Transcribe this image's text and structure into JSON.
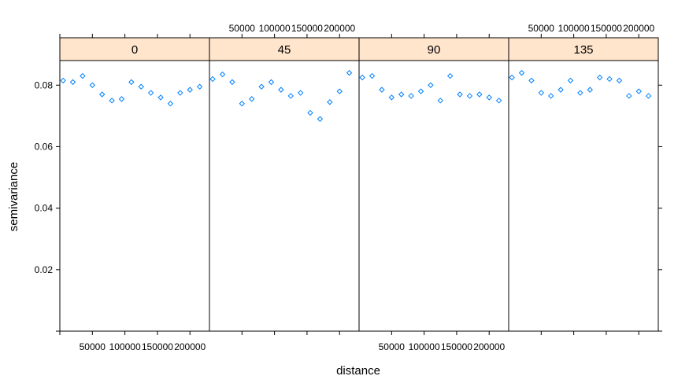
{
  "chart_data": {
    "type": "scatter",
    "xlabel": "distance",
    "ylabel": "semivariance",
    "xlim": [
      0,
      230000
    ],
    "ylim": [
      0,
      0.088
    ],
    "y_ticks": [
      0.02,
      0.04,
      0.06,
      0.08
    ],
    "y_tick_labels": [
      "0.02",
      "0.04",
      "0.06",
      "0.08"
    ],
    "x_ticks": [
      50000,
      100000,
      150000,
      200000
    ],
    "x_tick_labels": [
      "50000",
      "100000",
      "150000",
      "200000"
    ],
    "strip_color": "#ffe5cc",
    "point_color": "#0080ff",
    "panels": [
      {
        "label": "0",
        "x": [
          5000,
          20000,
          35000,
          50000,
          65000,
          80000,
          95000,
          110000,
          125000,
          140000,
          155000,
          170000,
          185000,
          200000,
          215000
        ],
        "y": [
          0.0815,
          0.081,
          0.083,
          0.08,
          0.077,
          0.075,
          0.0755,
          0.081,
          0.0795,
          0.0775,
          0.076,
          0.074,
          0.0775,
          0.0785,
          0.0795
        ]
      },
      {
        "label": "45",
        "x": [
          5000,
          20000,
          35000,
          50000,
          65000,
          80000,
          95000,
          110000,
          125000,
          140000,
          155000,
          170000,
          185000,
          200000,
          215000
        ],
        "y": [
          0.082,
          0.0835,
          0.081,
          0.074,
          0.0755,
          0.0795,
          0.081,
          0.0785,
          0.0765,
          0.0775,
          0.071,
          0.069,
          0.0745,
          0.078,
          0.084
        ]
      },
      {
        "label": "90",
        "x": [
          5000,
          20000,
          35000,
          50000,
          65000,
          80000,
          95000,
          110000,
          125000,
          140000,
          155000,
          170000,
          185000,
          200000,
          215000
        ],
        "y": [
          0.0825,
          0.083,
          0.0785,
          0.076,
          0.077,
          0.0765,
          0.078,
          0.08,
          0.075,
          0.083,
          0.077,
          0.0765,
          0.077,
          0.076,
          0.075
        ]
      },
      {
        "label": "135",
        "x": [
          5000,
          20000,
          35000,
          50000,
          65000,
          80000,
          95000,
          110000,
          125000,
          140000,
          155000,
          170000,
          185000,
          200000,
          215000
        ],
        "y": [
          0.0825,
          0.084,
          0.0815,
          0.0775,
          0.0765,
          0.0785,
          0.0815,
          0.0775,
          0.0785,
          0.0825,
          0.082,
          0.0815,
          0.0765,
          0.078,
          0.0765
        ]
      }
    ],
    "top_axis_panels": [
      1,
      3
    ],
    "bottom_axis_panels": [
      0,
      2
    ],
    "grid": false,
    "legend": "none"
  }
}
